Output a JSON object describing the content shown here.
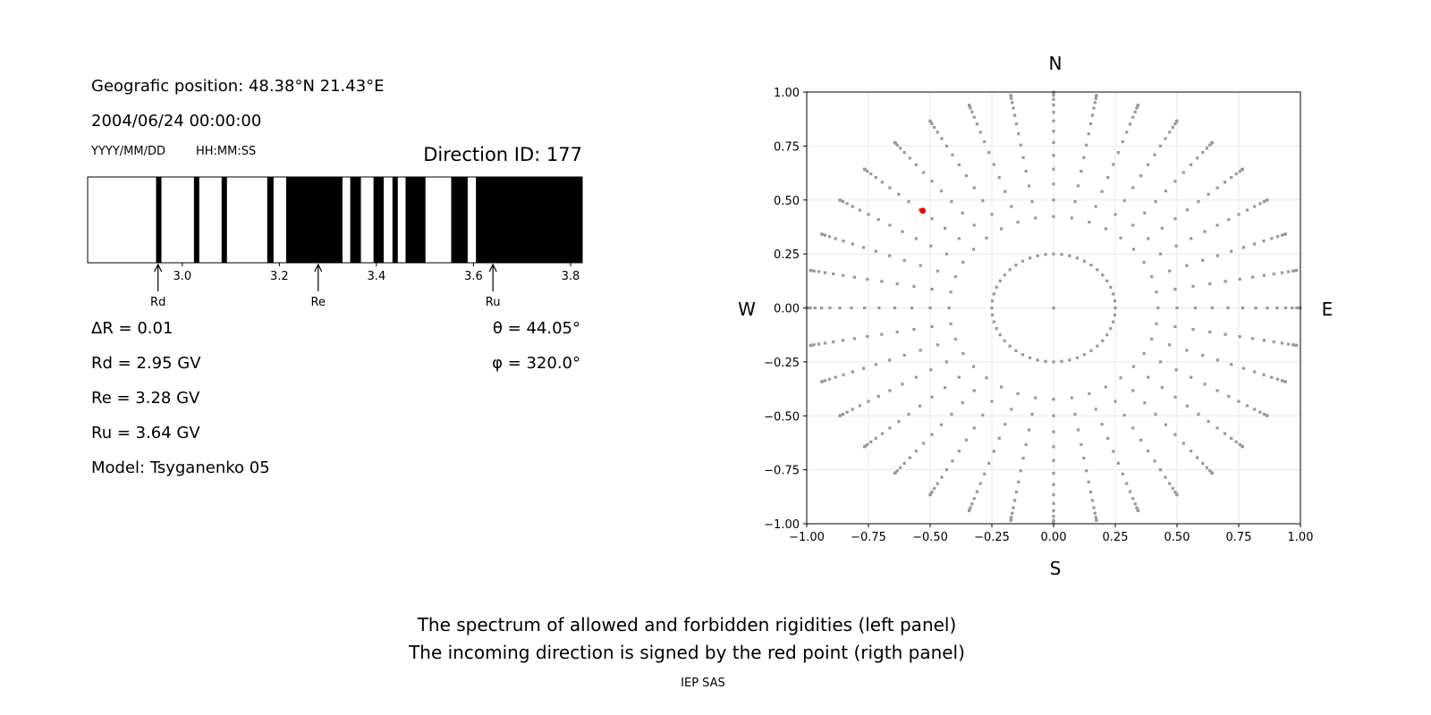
{
  "left_panel": {
    "geo_position": "Geografic position: 48.38°N 21.43°E",
    "datetime": "2004/06/24 00:00:00",
    "date_format": "YYYY/MM/DD",
    "time_format": "HH:MM:SS",
    "direction_id": "Direction ID: 177",
    "delta_r": "ΔR = 0.01",
    "rd": "Rd = 2.95 GV",
    "re": "Re = 3.28 GV",
    "ru": "Ru = 3.64 GV",
    "model": "Model: Tsyganenko 05",
    "theta": "θ = 44.05°",
    "phi": "φ = 320.0°"
  },
  "footer": {
    "line1": "The spectrum of allowed and forbidden rigidities (left panel)",
    "line2": "The incoming direction is signed by the red point (rigth panel)",
    "credit": "IEP SAS"
  },
  "chart_data": [
    {
      "type": "heatmap",
      "description_role": "rigidity spectrum (white = allowed, black = forbidden)",
      "xlim": [
        2.805,
        3.824
      ],
      "x_ticks": [
        "3.0",
        "3.2",
        "3.4",
        "3.6",
        "3.8"
      ],
      "x_tick_values": [
        3.0,
        3.2,
        3.4,
        3.6,
        3.8
      ],
      "forbidden_bands": [
        [
          2.946,
          2.957
        ],
        [
          3.024,
          3.035
        ],
        [
          3.081,
          3.092
        ],
        [
          3.175,
          3.188
        ],
        [
          3.214,
          3.33
        ],
        [
          3.346,
          3.368
        ],
        [
          3.394,
          3.415
        ],
        [
          3.433,
          3.444
        ],
        [
          3.46,
          3.501
        ],
        [
          3.554,
          3.588
        ],
        [
          3.605,
          3.824
        ]
      ],
      "markers": [
        {
          "label": "Rd",
          "value": 2.95
        },
        {
          "label": "Re",
          "value": 3.28
        },
        {
          "label": "Ru",
          "value": 3.64
        }
      ],
      "colors": {
        "allowed": "#ffffff",
        "forbidden": "#000000"
      }
    },
    {
      "type": "scatter",
      "xlim": [
        -1.0,
        1.0
      ],
      "ylim": [
        -1.0,
        1.0
      ],
      "x_ticks": [
        "−1.00",
        "−0.75",
        "−0.50",
        "−0.25",
        "0.00",
        "0.25",
        "0.50",
        "0.75",
        "1.00"
      ],
      "y_ticks": [
        "−1.00",
        "−0.75",
        "−0.50",
        "−0.25",
        "0.00",
        "0.25",
        "0.50",
        "0.75",
        "1.00"
      ],
      "tick_values": [
        -1.0,
        -0.75,
        -0.5,
        -0.25,
        0.0,
        0.25,
        0.5,
        0.75,
        1.0
      ],
      "grid": true,
      "compass": {
        "north": "N",
        "south": "S",
        "west": "W",
        "east": "E"
      },
      "direction_grid": {
        "center": [
          0,
          0
        ],
        "inner_ring_radius": 0.25,
        "inner_ring_count": 48,
        "ray_azimuth_step_deg": 10,
        "ray_radii": [
          0.423,
          0.5,
          0.574,
          0.643,
          0.707,
          0.766,
          0.819,
          0.866,
          0.906,
          0.94,
          0.966,
          0.985,
          0.996,
          1.0
        ],
        "color": "#999999"
      },
      "incoming_direction": {
        "x": -0.53,
        "y": 0.45,
        "color": "#ff0000"
      }
    }
  ]
}
